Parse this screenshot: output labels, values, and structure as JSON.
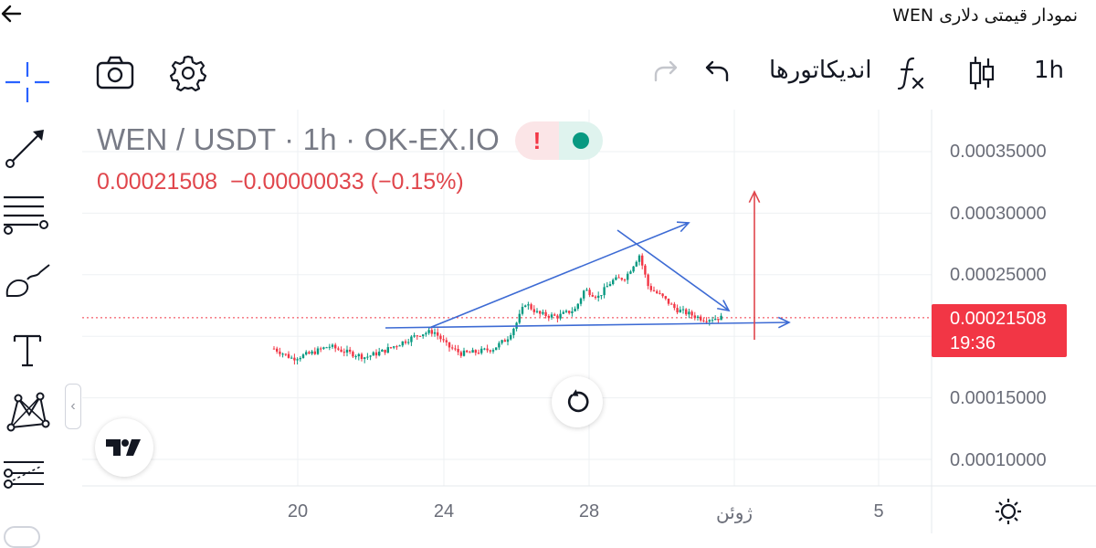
{
  "header": {
    "title": "نمودار قیمتی دلاری WEN"
  },
  "toolbar": {
    "interval": "1h",
    "indicators_label": "اندیکاتورها",
    "icons": [
      "camera-icon",
      "gear-icon",
      "redo-icon",
      "undo-icon",
      "fx-icon",
      "candles-icon"
    ]
  },
  "left_tools": [
    "crosshair-icon",
    "trend-line-icon",
    "fib-icon",
    "brush-icon",
    "text-icon",
    "pattern-icon",
    "measure-icon"
  ],
  "legend": {
    "symbol": "WEN / USDT · 1h · OK-EX.IO",
    "price": "0.00021508",
    "change": "−0.00000033 (−0.15%)"
  },
  "price_tag": {
    "price": "0.00021508",
    "countdown": "19:36"
  },
  "colors": {
    "up": "#089981",
    "down": "#f23645",
    "drawing": "#3d6bd4",
    "accent_red": "#e0464c"
  },
  "chart_data": {
    "type": "candlestick",
    "y_axis_labels": [
      "0.00035000",
      "0.00030000",
      "0.00025000",
      "0.00015000",
      "0.00010000"
    ],
    "y_values": [
      0.00035,
      0.0003,
      0.00025,
      0.00015,
      0.0001
    ],
    "x_axis_labels": [
      "20",
      "24",
      "28",
      "ژوئن",
      "5"
    ],
    "current_price": 0.00021508
  }
}
